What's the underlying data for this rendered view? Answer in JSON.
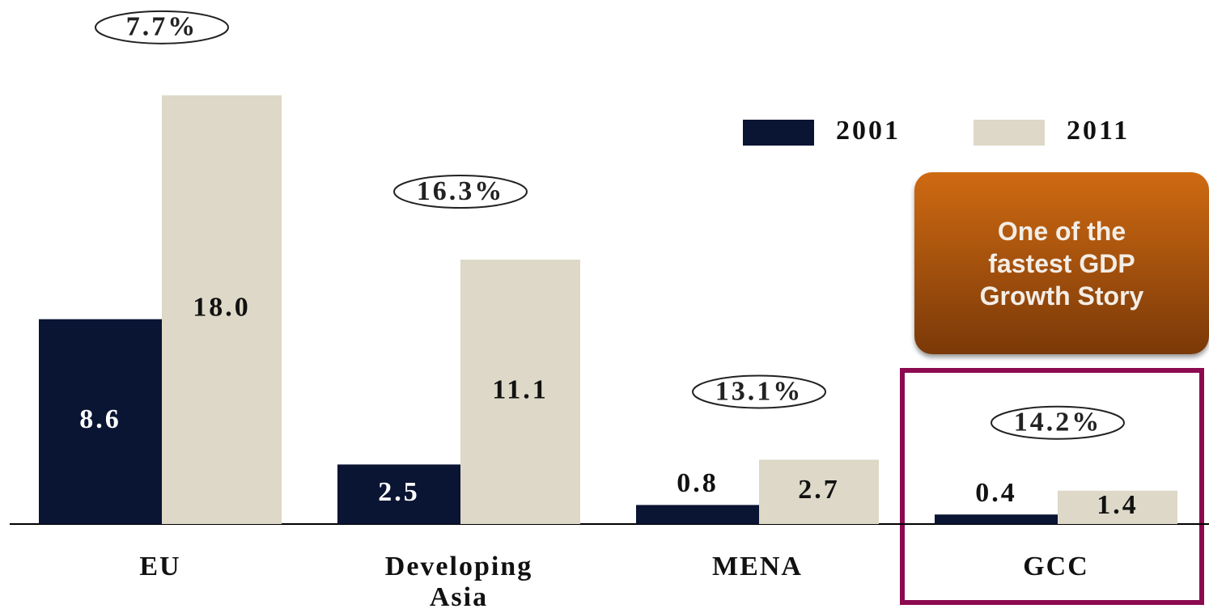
{
  "chart_data": {
    "type": "bar",
    "categories": [
      "EU",
      "Developing Asia",
      "MENA",
      "GCC"
    ],
    "series": [
      {
        "name": "2001",
        "color": "#0a1433",
        "values": [
          8.6,
          2.5,
          0.8,
          0.4
        ],
        "value_labels": [
          "8.6",
          "2.5",
          "0.8",
          "0.4"
        ]
      },
      {
        "name": "2011",
        "color": "#ddd8c7",
        "values": [
          18.0,
          11.1,
          2.7,
          1.4
        ],
        "value_labels": [
          "18.0",
          "11.1",
          "2.7",
          "1.4"
        ]
      }
    ],
    "growth_labels": [
      "7.7%",
      "16.3%",
      "13.1%",
      "14.2%"
    ],
    "callout": "One of the fastest GDP Growth Story",
    "ylim": [
      0,
      22
    ],
    "legend": "top-right"
  }
}
